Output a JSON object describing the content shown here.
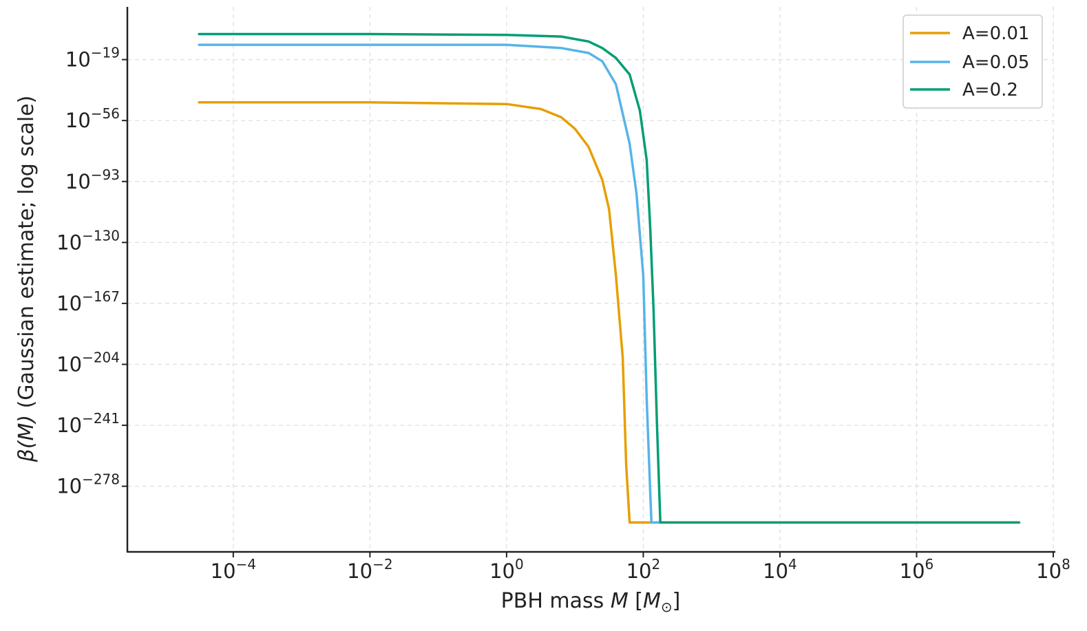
{
  "chart_data": {
    "type": "line",
    "title": "",
    "xlabel": "PBH mass M [M⊙]",
    "xlabel_parts": {
      "prefix": "PBH mass ",
      "var": "M",
      "unit_open": " [",
      "unit_var": "M",
      "unit_sub": "⊙",
      "unit_close": "]"
    },
    "ylabel": "β(M) (Gaussian estimate; log scale)",
    "ylabel_parts": {
      "var": "β(M)",
      "rest": " (Gaussian estimate; log scale)"
    },
    "x_scale": "log",
    "y_scale": "log",
    "xlim_exp": [
      -5.55,
      8.0
    ],
    "ylim_exp": [
      -317,
      13
    ],
    "x_ticks": [
      {
        "base": "10",
        "exp": "−4",
        "value": -4
      },
      {
        "base": "10",
        "exp": "−2",
        "value": -2
      },
      {
        "base": "10",
        "exp": "0",
        "value": 0
      },
      {
        "base": "10",
        "exp": "2",
        "value": 2
      },
      {
        "base": "10",
        "exp": "4",
        "value": 4
      },
      {
        "base": "10",
        "exp": "6",
        "value": 6
      },
      {
        "base": "10",
        "exp": "8",
        "value": 8
      }
    ],
    "y_ticks": [
      {
        "base": "10",
        "exp": "−19",
        "value": -19
      },
      {
        "base": "10",
        "exp": "−56",
        "value": -56
      },
      {
        "base": "10",
        "exp": "−93",
        "value": -93
      },
      {
        "base": "10",
        "exp": "−130",
        "value": -130
      },
      {
        "base": "10",
        "exp": "−167",
        "value": -167
      },
      {
        "base": "10",
        "exp": "−204",
        "value": -204
      },
      {
        "base": "10",
        "exp": "−241",
        "value": -241
      },
      {
        "base": "10",
        "exp": "−278",
        "value": -278
      }
    ],
    "grid": true,
    "legend_position": "top-right",
    "series": [
      {
        "name": "A=0.01",
        "color": "#E69F00",
        "points": [
          [
            -4.5,
            -45
          ],
          [
            -2,
            -45
          ],
          [
            0,
            -46
          ],
          [
            0.5,
            -49
          ],
          [
            0.8,
            -54
          ],
          [
            1.0,
            -61
          ],
          [
            1.2,
            -72
          ],
          [
            1.4,
            -92
          ],
          [
            1.5,
            -110
          ],
          [
            1.6,
            -150
          ],
          [
            1.7,
            -200
          ],
          [
            1.75,
            -265
          ],
          [
            1.8,
            -300
          ],
          [
            2.0,
            -300
          ],
          [
            7.5,
            -300
          ]
        ]
      },
      {
        "name": "A=0.05",
        "color": "#56B4E9",
        "points": [
          [
            -4.5,
            -10
          ],
          [
            -2,
            -10
          ],
          [
            0,
            -10
          ],
          [
            0.8,
            -12
          ],
          [
            1.2,
            -15
          ],
          [
            1.4,
            -20
          ],
          [
            1.6,
            -34
          ],
          [
            1.8,
            -70
          ],
          [
            1.9,
            -100
          ],
          [
            2.0,
            -150
          ],
          [
            2.05,
            -225
          ],
          [
            2.1,
            -280
          ],
          [
            2.12,
            -300
          ],
          [
            2.3,
            -300
          ],
          [
            7.5,
            -300
          ]
        ]
      },
      {
        "name": "A=0.2",
        "color": "#009E73",
        "points": [
          [
            -4.5,
            -3.5
          ],
          [
            -2,
            -3.5
          ],
          [
            0,
            -4
          ],
          [
            0.8,
            -5
          ],
          [
            1.2,
            -8
          ],
          [
            1.4,
            -12
          ],
          [
            1.6,
            -18
          ],
          [
            1.8,
            -28
          ],
          [
            1.95,
            -50
          ],
          [
            2.05,
            -80
          ],
          [
            2.1,
            -120
          ],
          [
            2.15,
            -170
          ],
          [
            2.2,
            -240
          ],
          [
            2.25,
            -300
          ],
          [
            7.5,
            -300
          ]
        ]
      }
    ]
  }
}
